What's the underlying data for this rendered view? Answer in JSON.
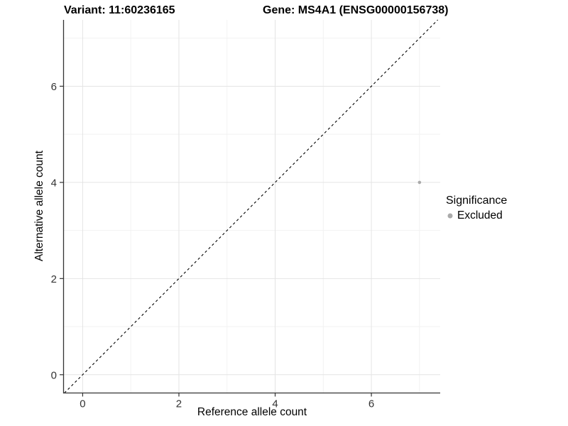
{
  "title": {
    "variant": "Variant: 11:60236165",
    "gene": "Gene: MS4A1 (ENSG00000156738)"
  },
  "chart_data": {
    "type": "scatter",
    "title": "Variant: 11:60236165    Gene: MS4A1 (ENSG00000156738)",
    "xlabel": "Reference allele count",
    "ylabel": "Alternative allele count",
    "xlim": [
      -0.39,
      7.43
    ],
    "ylim": [
      -0.38,
      7.38
    ],
    "x_major_ticks": [
      0,
      2,
      4,
      6
    ],
    "y_major_ticks": [
      0,
      2,
      4,
      6
    ],
    "x_minor_ticks": [
      1,
      3,
      5,
      7
    ],
    "y_minor_ticks": [
      1,
      3,
      5,
      7
    ],
    "grid": "major and minor, light gray on white",
    "points": [
      {
        "x": 7,
        "y": 4,
        "series": "Excluded"
      }
    ],
    "reference_line": {
      "kind": "identity y=x",
      "style": "dashed",
      "color": "#000000"
    },
    "legend": {
      "title": "Significance",
      "position": "right",
      "items": [
        {
          "label": "Excluded",
          "color": "#aaaaaa"
        }
      ]
    }
  },
  "colors": {
    "background": "#ffffff",
    "axis_line": "#333333",
    "tick_label": "#333333",
    "grid_major": "#e4e4e4",
    "grid_minor": "#f2f2f2",
    "point": "#aaaaaa",
    "text": "#000000"
  }
}
